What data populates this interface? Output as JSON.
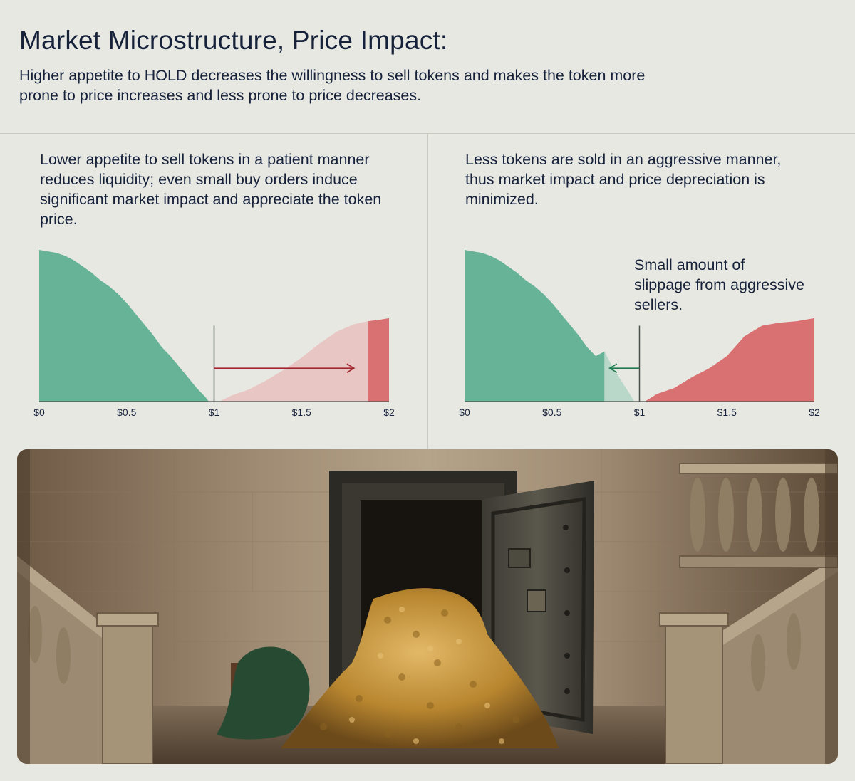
{
  "header": {
    "title": "Market Microstructure, Price Impact:",
    "subtitle": "Higher appetite to HOLD decreases the willingness to sell tokens and makes the token more prone to price increases and less prone to price decreases."
  },
  "panels": {
    "left": {
      "text": "Lower appetite to sell tokens in a patient manner reduces liquidity; even small buy orders induce significant market impact and appreciate the token price."
    },
    "right": {
      "text": "Less tokens are sold in an aggressive manner, thus market impact and price depreciation is minimized.",
      "annotation": "Small amount of slippage from aggressive sellers."
    }
  },
  "colors": {
    "bid_green": "#66b397",
    "bid_green_light": "#b9d8c9",
    "ask_red": "#d97071",
    "ask_red_light": "#e8c6c4",
    "arrow_red": "#a3272b",
    "arrow_green": "#1f7a4f",
    "axis": "#4a4f4a"
  },
  "illustration": {
    "icon": "vault-of-gold-coins-illustration"
  },
  "chart_data": [
    {
      "type": "area",
      "panel": "left",
      "xlim": [
        0,
        2
      ],
      "ylim": [
        0,
        1
      ],
      "x_ticks": [
        {
          "value": 0,
          "label": "$0"
        },
        {
          "value": 0.5,
          "label": "$0.5"
        },
        {
          "value": 1,
          "label": "$1"
        },
        {
          "value": 1.5,
          "label": "$1.5"
        },
        {
          "value": 2,
          "label": "$2"
        }
      ],
      "series": [
        {
          "role": "bids",
          "color": "#66b397",
          "points": [
            [
              0,
              1.0
            ],
            [
              0.05,
              0.99
            ],
            [
              0.1,
              0.98
            ],
            [
              0.15,
              0.96
            ],
            [
              0.2,
              0.93
            ],
            [
              0.25,
              0.89
            ],
            [
              0.3,
              0.85
            ],
            [
              0.35,
              0.8
            ],
            [
              0.4,
              0.76
            ],
            [
              0.45,
              0.71
            ],
            [
              0.5,
              0.65
            ],
            [
              0.55,
              0.58
            ],
            [
              0.6,
              0.51
            ],
            [
              0.65,
              0.44
            ],
            [
              0.7,
              0.36
            ],
            [
              0.75,
              0.3
            ],
            [
              0.8,
              0.23
            ],
            [
              0.85,
              0.16
            ],
            [
              0.9,
              0.09
            ],
            [
              0.95,
              0.03
            ],
            [
              0.97,
              0.0
            ]
          ]
        },
        {
          "role": "asks-consumed",
          "color": "#e8c6c4",
          "points": [
            [
              1.03,
              0.0
            ],
            [
              1.1,
              0.04
            ],
            [
              1.2,
              0.08
            ],
            [
              1.3,
              0.14
            ],
            [
              1.4,
              0.21
            ],
            [
              1.5,
              0.29
            ],
            [
              1.6,
              0.38
            ],
            [
              1.7,
              0.46
            ],
            [
              1.8,
              0.51
            ],
            [
              1.88,
              0.53
            ]
          ]
        },
        {
          "role": "asks-remaining",
          "color": "#d97071",
          "points": [
            [
              1.88,
              0.53
            ],
            [
              1.95,
              0.54
            ],
            [
              2.0,
              0.55
            ]
          ]
        }
      ],
      "markers": [
        {
          "type": "vline",
          "x": 1.0
        },
        {
          "type": "arrow",
          "from": 1.0,
          "to": 1.8,
          "y": 0.22,
          "color": "#a3272b"
        }
      ]
    },
    {
      "type": "area",
      "panel": "right",
      "xlim": [
        0,
        2
      ],
      "ylim": [
        0,
        1
      ],
      "x_ticks": [
        {
          "value": 0,
          "label": "$0"
        },
        {
          "value": 0.5,
          "label": "$0.5"
        },
        {
          "value": 1,
          "label": "$1"
        },
        {
          "value": 1.5,
          "label": "$1.5"
        },
        {
          "value": 2,
          "label": "$2"
        }
      ],
      "series": [
        {
          "role": "bids-remaining",
          "color": "#66b397",
          "points": [
            [
              0,
              1.0
            ],
            [
              0.05,
              0.99
            ],
            [
              0.1,
              0.98
            ],
            [
              0.15,
              0.96
            ],
            [
              0.2,
              0.93
            ],
            [
              0.25,
              0.89
            ],
            [
              0.3,
              0.85
            ],
            [
              0.35,
              0.8
            ],
            [
              0.4,
              0.76
            ],
            [
              0.45,
              0.71
            ],
            [
              0.5,
              0.65
            ],
            [
              0.55,
              0.58
            ],
            [
              0.6,
              0.51
            ],
            [
              0.65,
              0.44
            ],
            [
              0.7,
              0.36
            ],
            [
              0.75,
              0.3
            ],
            [
              0.8,
              0.33
            ]
          ]
        },
        {
          "role": "bids-consumed",
          "color": "#b9d8c9",
          "points": [
            [
              0.8,
              0.33
            ],
            [
              0.85,
              0.22
            ],
            [
              0.9,
              0.13
            ],
            [
              0.95,
              0.04
            ],
            [
              0.97,
              0.0
            ]
          ]
        },
        {
          "role": "asks",
          "color": "#d97071",
          "points": [
            [
              1.03,
              0.0
            ],
            [
              1.1,
              0.05
            ],
            [
              1.2,
              0.09
            ],
            [
              1.3,
              0.16
            ],
            [
              1.4,
              0.22
            ],
            [
              1.5,
              0.3
            ],
            [
              1.6,
              0.43
            ],
            [
              1.7,
              0.5
            ],
            [
              1.8,
              0.52
            ],
            [
              1.9,
              0.53
            ],
            [
              2.0,
              0.55
            ]
          ]
        }
      ],
      "markers": [
        {
          "type": "vline",
          "x": 1.0
        },
        {
          "type": "arrow",
          "from": 1.0,
          "to": 0.83,
          "y": 0.22,
          "color": "#1f7a4f"
        }
      ]
    }
  ]
}
